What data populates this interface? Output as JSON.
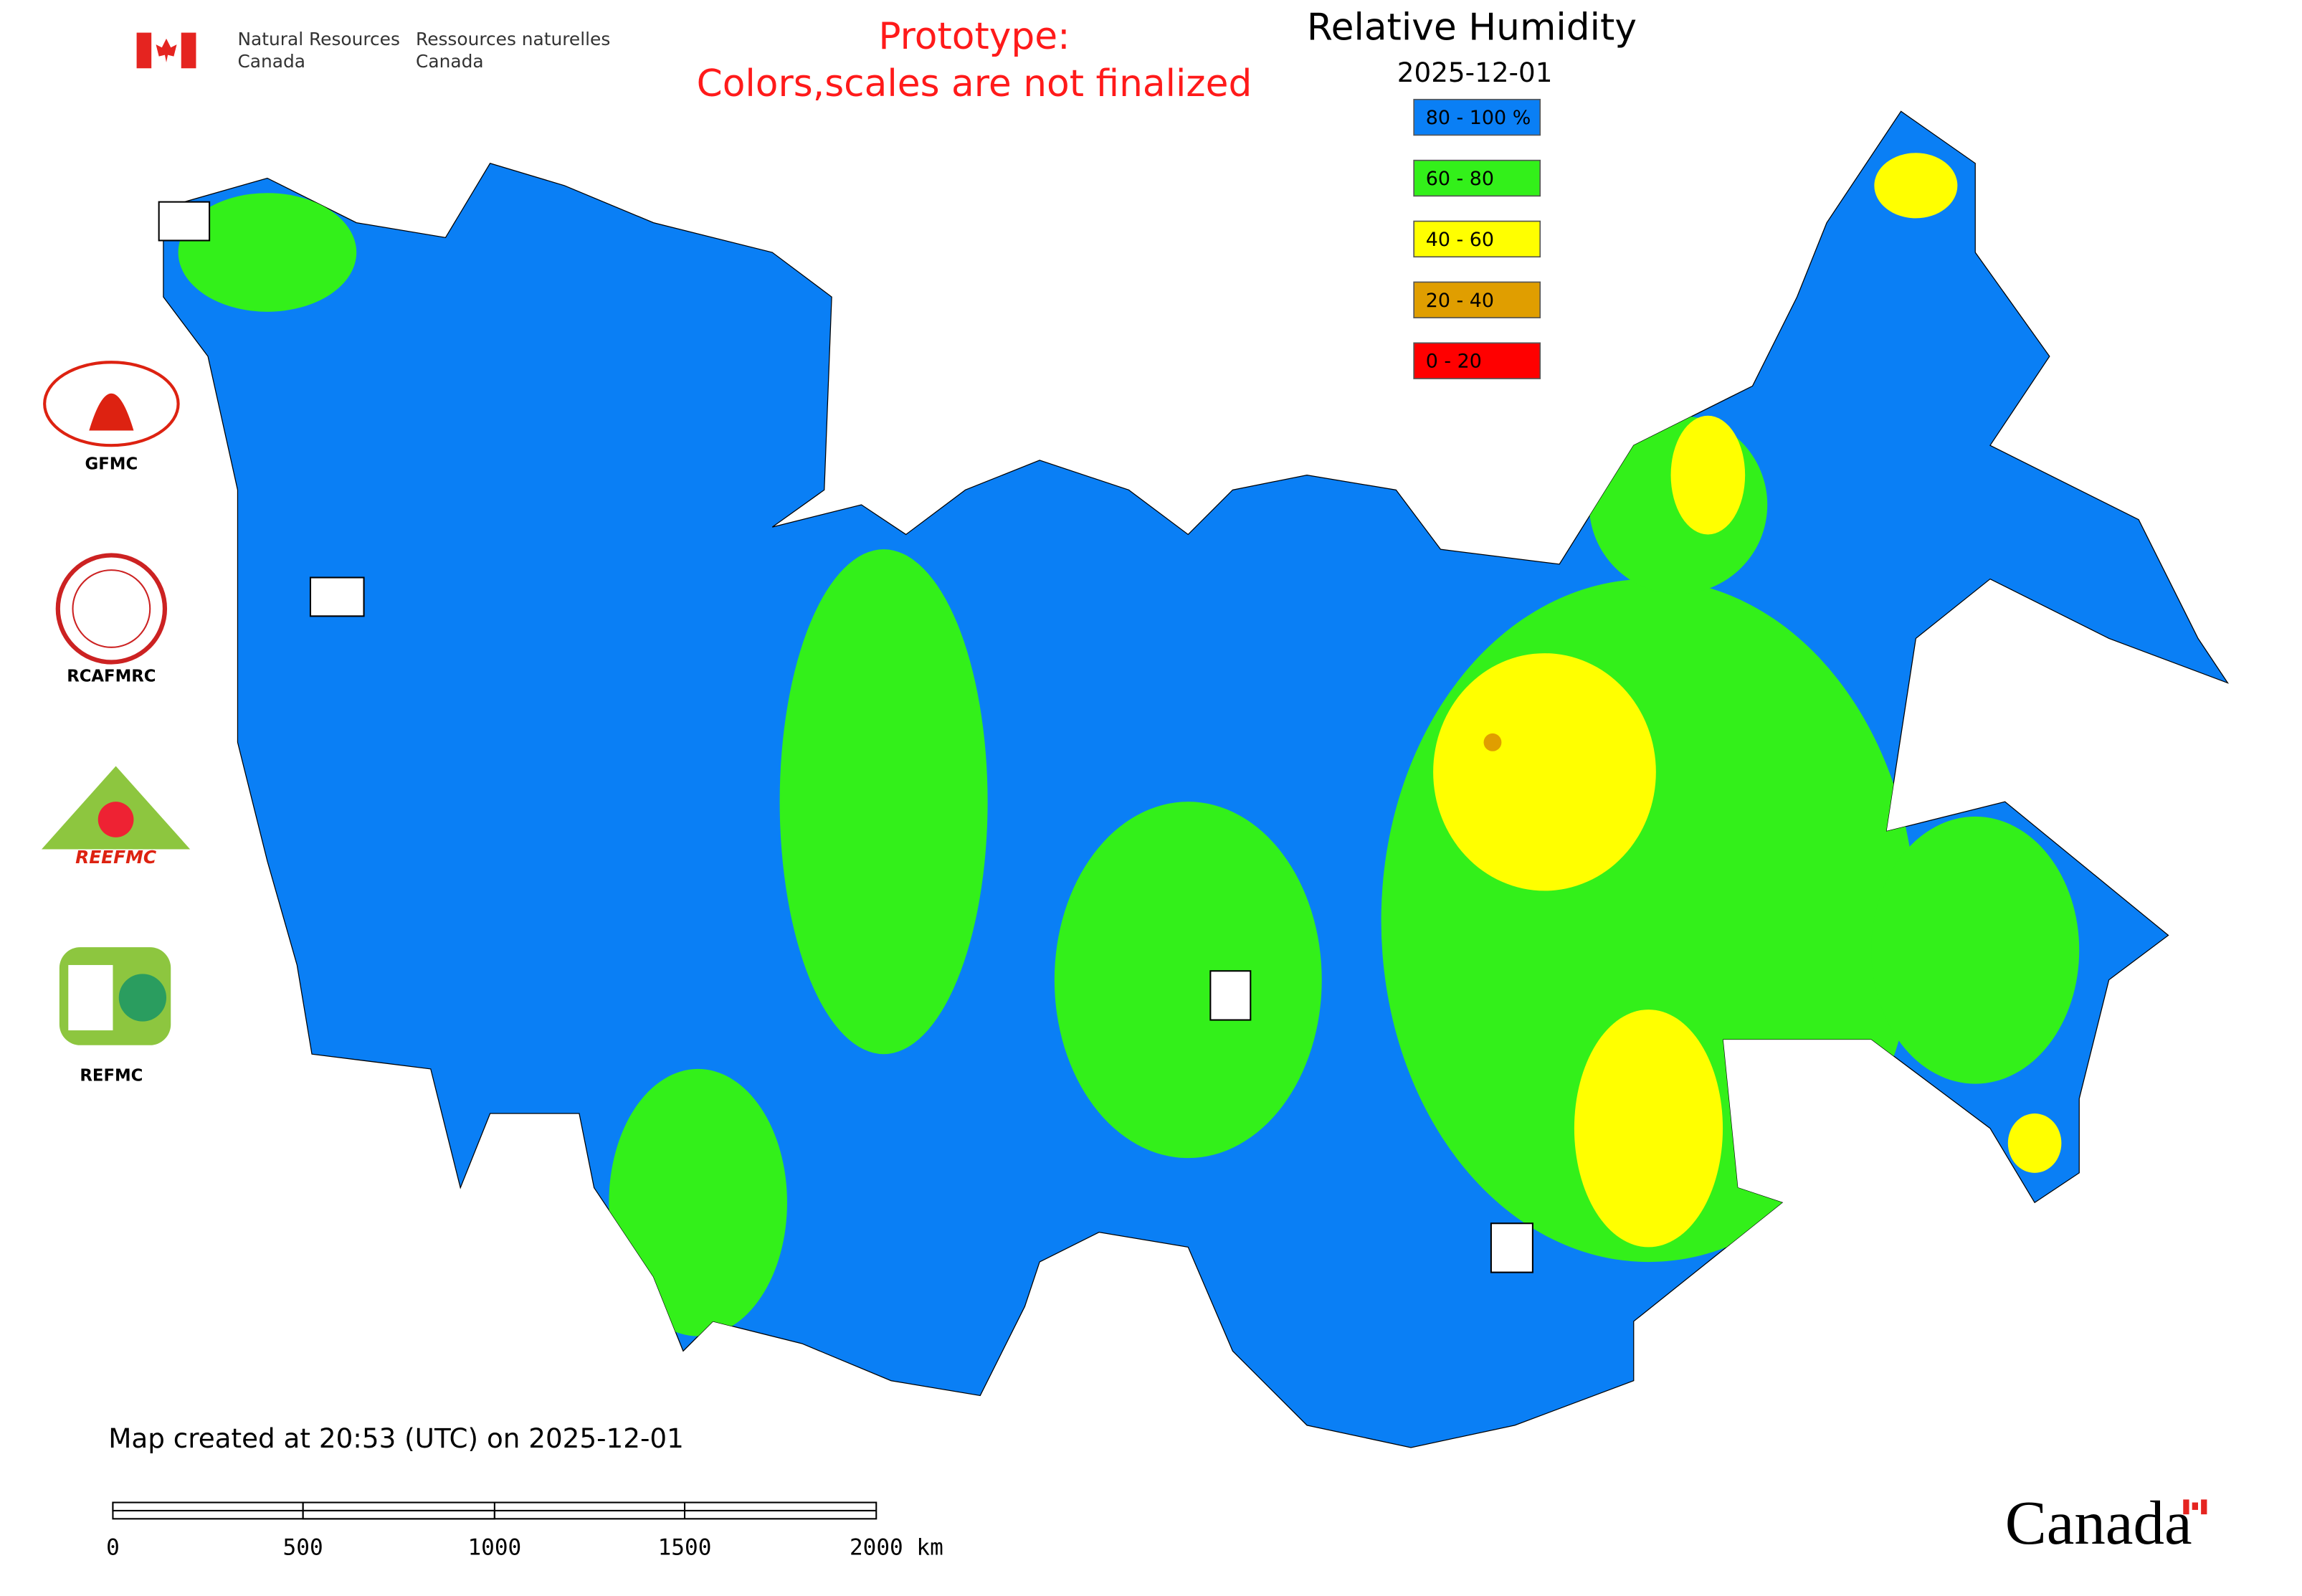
{
  "header": {
    "agency_en": [
      "Natural Resources",
      "Canada"
    ],
    "agency_fr": [
      "Ressources naturelles",
      "Canada"
    ]
  },
  "notice": [
    "Prototype:",
    "Colors,scales are not finalized"
  ],
  "legend": {
    "title": "Relative Humidity",
    "date": "2025-12-01",
    "items": [
      {
        "label": "80 - 100 %",
        "color": "#0a7ff5"
      },
      {
        "label": "60 - 80",
        "color": "#33f01a"
      },
      {
        "label": "40 - 60",
        "color": "#ffff00"
      },
      {
        "label": "20 - 40",
        "color": "#e09e00"
      },
      {
        "label": "0 - 20",
        "color": "#ff0000"
      }
    ]
  },
  "logos": [
    "GFMC",
    "RCAFMRC",
    "REEFMC",
    "REFMC"
  ],
  "footer": {
    "created": "Map created at 20:53 (UTC) on 2025-12-01",
    "scale": [
      "0",
      "500",
      "1000",
      "1500",
      "2000 km"
    ],
    "wordmark": "Canada"
  }
}
